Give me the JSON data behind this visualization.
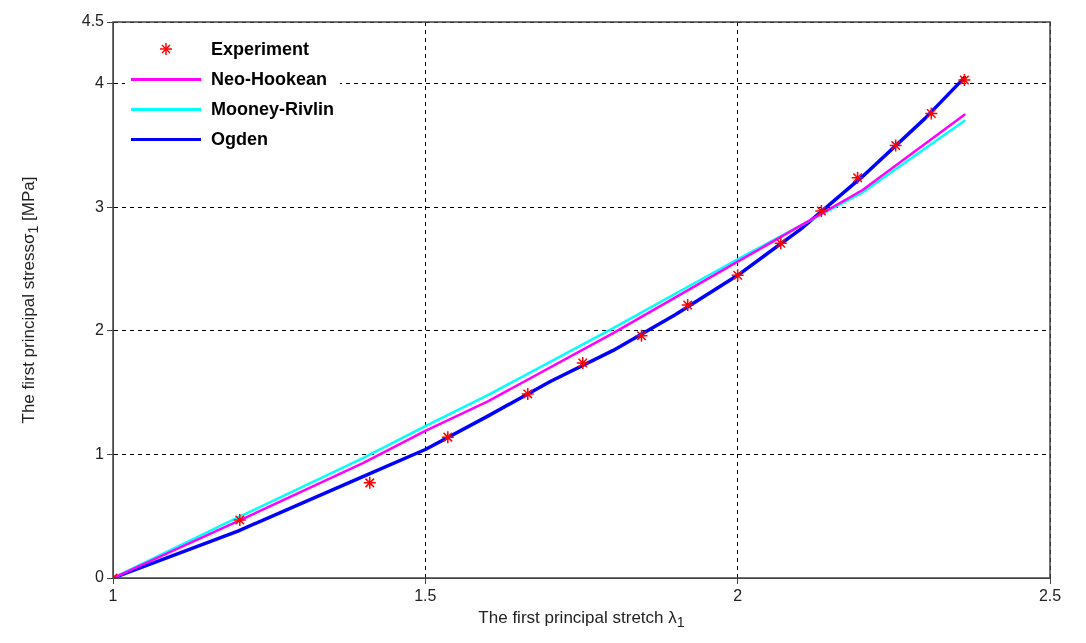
{
  "chart_data": {
    "type": "line",
    "xlabel": "The first principal stretch λ$_{1}$",
    "ylabel": "The first principal stressσ$_{1}$ [MPa]",
    "xlim": [
      1,
      2.5
    ],
    "xticks": [
      1,
      1.5,
      2,
      2.5
    ],
    "ylim": [
      0,
      4.5
    ],
    "yticks": [
      0,
      1,
      2,
      3,
      4,
      4.5
    ],
    "grid": true,
    "legend": "top left",
    "line_style": "solid",
    "series": [
      {
        "name": "Experiment",
        "type": "scatter",
        "marker": "cross",
        "color": "#ff0000",
        "x": [
          1,
          1.203,
          1.411,
          1.536,
          1.664,
          1.752,
          1.846,
          1.92,
          2.0,
          2.069,
          2.134,
          2.192,
          2.253,
          2.31,
          2.363
        ],
        "values": [
          0,
          0.47,
          0.77,
          1.14,
          1.49,
          1.74,
          1.96,
          2.21,
          2.45,
          2.71,
          2.97,
          3.24,
          3.5,
          3.76,
          4.03
        ]
      },
      {
        "name": "Neo-Hookean",
        "type": "line",
        "marker": "none",
        "color": "#ff00ff",
        "x": [
          1,
          1.2,
          1.4,
          1.5,
          1.6,
          1.8,
          2.0,
          2.2,
          2.363
        ],
        "values": [
          0,
          0.46,
          0.93,
          1.19,
          1.43,
          1.98,
          2.56,
          3.14,
          3.75
        ]
      },
      {
        "name": "Mooney-Rivlin",
        "type": "line",
        "marker": "none",
        "color": "#00ffff",
        "x": [
          1,
          1.2,
          1.4,
          1.5,
          1.6,
          1.8,
          2.0,
          2.2,
          2.363
        ],
        "values": [
          0,
          0.49,
          0.97,
          1.23,
          1.48,
          2.02,
          2.58,
          3.12,
          3.7
        ]
      },
      {
        "name": "Ogden",
        "type": "line",
        "marker": "none",
        "color": "#0000ff",
        "x": [
          1,
          1.2,
          1.4,
          1.5,
          1.6,
          1.7,
          1.8,
          1.9,
          2.0,
          2.1,
          2.2,
          2.3,
          2.363
        ],
        "values": [
          0,
          0.38,
          0.82,
          1.04,
          1.31,
          1.59,
          1.84,
          2.13,
          2.45,
          2.82,
          3.25,
          3.72,
          4.05
        ]
      }
    ]
  }
}
